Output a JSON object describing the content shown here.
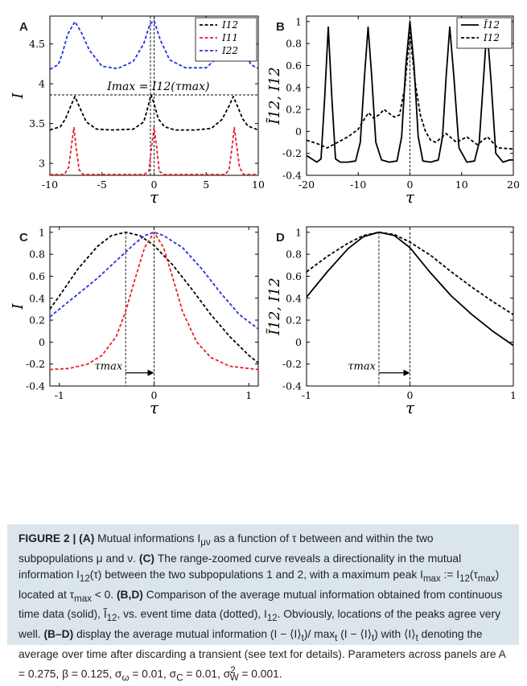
{
  "panels": [
    {
      "label": "A",
      "xlabel": "τ",
      "ylabel": "I",
      "xlim": [
        -10,
        10
      ],
      "ylim": [
        2.85,
        4.85
      ],
      "xticks": [
        "-10",
        "-5",
        "0",
        "5",
        "10"
      ],
      "xtickvals": [
        -10,
        -5,
        0,
        5,
        10
      ],
      "yticks": [
        "3",
        "3.5",
        "4",
        "4.5"
      ],
      "ytickvals": [
        3,
        3.5,
        4,
        4.5
      ],
      "legend": [
        "I12",
        "I11",
        "I22"
      ],
      "annotation": "Imax = I12(τmax)"
    },
    {
      "label": "B",
      "xlabel": "τ",
      "ylabel": "Ĩ12, I12",
      "xlim": [
        -20,
        20
      ],
      "ylim": [
        -0.4,
        1.05
      ],
      "xticks": [
        "-20",
        "-10",
        "0",
        "10",
        "20"
      ],
      "xtickvals": [
        -20,
        -10,
        0,
        10,
        20
      ],
      "yticks": [
        "-0.4",
        "-0.2",
        "0",
        "0.2",
        "0.4",
        "0.6",
        "0.8",
        "1"
      ],
      "ytickvals": [
        -0.4,
        -0.2,
        0,
        0.2,
        0.4,
        0.6,
        0.8,
        1
      ],
      "legend": [
        "Ĩ12",
        "I12"
      ]
    },
    {
      "label": "C",
      "xlabel": "τ",
      "ylabel": "I",
      "xlim": [
        -1.1,
        1.1
      ],
      "ylim": [
        -0.4,
        1.05
      ],
      "xticks": [
        "-1",
        "0",
        "1"
      ],
      "xtickvals": [
        -1,
        0,
        1
      ],
      "yticks": [
        "-0.4",
        "-0.2",
        "0",
        "0.2",
        "0.4",
        "0.6",
        "0.8",
        "1"
      ],
      "ytickvals": [
        -0.4,
        -0.2,
        0,
        0.2,
        0.4,
        0.6,
        0.8,
        1
      ],
      "annotation": "τmax"
    },
    {
      "label": "D",
      "xlabel": "τ",
      "ylabel": "Ĩ12, I12",
      "xlim": [
        -1,
        1
      ],
      "ylim": [
        -0.4,
        1.05
      ],
      "xticks": [
        "-1",
        "0",
        "1"
      ],
      "xtickvals": [
        -1,
        0,
        1
      ],
      "yticks": [
        "-0.4",
        "-0.2",
        "0",
        "0.2",
        "0.4",
        "0.6",
        "0.8",
        "1"
      ],
      "ytickvals": [
        -0.4,
        -0.2,
        0,
        0.2,
        0.4,
        0.6,
        0.8,
        1
      ],
      "annotation": "τmax"
    }
  ],
  "colors": {
    "black": "#000000",
    "red": "#e8202a",
    "blue": "#2233e0"
  },
  "chart_data": [
    {
      "type": "line",
      "panel": "A",
      "series": [
        {
          "name": "I12",
          "style": "dashed",
          "color": "#000000",
          "x": [
            -10,
            -9,
            -8.5,
            -8,
            -7.6,
            -7.2,
            -6.5,
            -5.5,
            -4,
            -2,
            -1,
            -0.6,
            -0.3,
            0,
            0.4,
            1,
            2,
            4,
            5.5,
            6.5,
            7.2,
            7.6,
            8,
            8.5,
            9,
            10
          ],
          "y": [
            3.42,
            3.46,
            3.56,
            3.72,
            3.84,
            3.72,
            3.52,
            3.43,
            3.42,
            3.43,
            3.52,
            3.7,
            3.86,
            3.75,
            3.56,
            3.46,
            3.42,
            3.42,
            3.44,
            3.55,
            3.72,
            3.84,
            3.72,
            3.56,
            3.47,
            3.42
          ]
        },
        {
          "name": "I11",
          "style": "dashed",
          "color": "#e8202a",
          "x": [
            -10,
            -8.6,
            -8.2,
            -7.9,
            -7.7,
            -7.5,
            -7.2,
            -6.8,
            -1,
            -0.5,
            -0.25,
            0,
            0.25,
            0.5,
            1,
            6.8,
            7.2,
            7.5,
            7.7,
            7.9,
            8.2,
            8.6,
            10
          ],
          "y": [
            2.86,
            2.86,
            2.95,
            3.25,
            3.45,
            3.22,
            2.92,
            2.86,
            2.86,
            2.9,
            3.2,
            3.45,
            3.2,
            2.9,
            2.86,
            2.86,
            2.92,
            3.22,
            3.45,
            3.25,
            2.95,
            2.86,
            2.86
          ]
        },
        {
          "name": "I22",
          "style": "dashed",
          "color": "#2233e0",
          "x": [
            -10,
            -9.2,
            -8.8,
            -8.3,
            -7.6,
            -7,
            -6.2,
            -5,
            -3.5,
            -2,
            -1,
            -0.4,
            0,
            0.6,
            1.5,
            3,
            5,
            6.3,
            7,
            7.6,
            8.2,
            8.8,
            9.3,
            10
          ],
          "y": [
            4.18,
            4.24,
            4.38,
            4.62,
            4.78,
            4.65,
            4.42,
            4.22,
            4.19,
            4.28,
            4.5,
            4.75,
            4.79,
            4.55,
            4.3,
            4.2,
            4.2,
            4.36,
            4.62,
            4.78,
            4.62,
            4.38,
            4.24,
            4.19
          ]
        }
      ]
    },
    {
      "type": "line",
      "panel": "B",
      "series": [
        {
          "name": "Ĩ12",
          "style": "solid",
          "color": "#000000",
          "x": [
            -20,
            -19,
            -18,
            -17.2,
            -16.5,
            -15.8,
            -15.1,
            -14.4,
            -13.5,
            -12,
            -10.5,
            -9.6,
            -8.8,
            -8.1,
            -7.4,
            -6.6,
            -5.5,
            -4,
            -2.5,
            -1.6,
            -0.8,
            0,
            0.8,
            1.6,
            2.5,
            4,
            5.5,
            6.3,
            7,
            7.7,
            8.5,
            9.5,
            11,
            12.5,
            13.4,
            14.2,
            14.9,
            15.7,
            16.6,
            18,
            19.3,
            20
          ],
          "y": [
            -0.22,
            -0.25,
            -0.28,
            -0.25,
            0.3,
            0.95,
            0.3,
            -0.25,
            -0.28,
            -0.28,
            -0.27,
            -0.1,
            0.5,
            0.95,
            0.5,
            -0.1,
            -0.26,
            -0.28,
            -0.27,
            -0.05,
            0.6,
            1.0,
            0.6,
            -0.05,
            -0.27,
            -0.28,
            -0.26,
            -0.05,
            0.5,
            0.95,
            0.5,
            -0.15,
            -0.28,
            -0.27,
            -0.1,
            0.45,
            0.95,
            0.45,
            -0.2,
            -0.28,
            -0.26,
            -0.26
          ]
        },
        {
          "name": "I12",
          "style": "dashed",
          "color": "#000000",
          "x": [
            -20,
            -18,
            -16,
            -14,
            -12,
            -10,
            -9,
            -8,
            -7,
            -6,
            -5,
            -4.5,
            -3,
            -2,
            -1,
            0,
            1,
            2,
            3,
            4,
            5,
            7,
            9,
            11,
            13,
            15,
            17,
            20
          ],
          "y": [
            -0.08,
            -0.11,
            -0.15,
            -0.1,
            -0.05,
            0.02,
            0.1,
            0.17,
            0.12,
            0.15,
            0.2,
            0.18,
            0.13,
            0.15,
            0.4,
            0.9,
            0.45,
            0.15,
            0.0,
            -0.08,
            -0.1,
            -0.02,
            -0.1,
            -0.05,
            -0.12,
            -0.05,
            -0.15,
            -0.16
          ]
        }
      ]
    },
    {
      "type": "line",
      "panel": "C",
      "series": [
        {
          "name": "",
          "style": "dashed",
          "color": "#000000",
          "x": [
            -1.1,
            -1,
            -0.8,
            -0.6,
            -0.45,
            -0.3,
            -0.15,
            0,
            0.2,
            0.4,
            0.6,
            0.8,
            1,
            1.1
          ],
          "y": [
            0.3,
            0.42,
            0.67,
            0.87,
            0.97,
            1.0,
            0.97,
            0.88,
            0.7,
            0.48,
            0.25,
            0.05,
            -0.12,
            -0.19
          ]
        },
        {
          "name": "",
          "style": "dashed",
          "color": "#2233e0",
          "x": [
            -1.1,
            -1,
            -0.8,
            -0.6,
            -0.4,
            -0.2,
            -0.1,
            0,
            0.1,
            0.3,
            0.5,
            0.7,
            0.9,
            1.1
          ],
          "y": [
            0.23,
            0.3,
            0.44,
            0.58,
            0.74,
            0.9,
            0.97,
            1.0,
            0.97,
            0.86,
            0.67,
            0.45,
            0.25,
            0.12
          ]
        },
        {
          "name": "",
          "style": "dashed",
          "color": "#e8202a",
          "x": [
            -1.1,
            -0.9,
            -0.7,
            -0.55,
            -0.4,
            -0.3,
            -0.2,
            -0.1,
            0,
            0.1,
            0.2,
            0.3,
            0.45,
            0.6,
            0.8,
            1,
            1.1
          ],
          "y": [
            -0.25,
            -0.24,
            -0.2,
            -0.12,
            0.05,
            0.28,
            0.58,
            0.86,
            1.0,
            0.86,
            0.58,
            0.28,
            0.0,
            -0.14,
            -0.22,
            -0.24,
            -0.25
          ]
        }
      ]
    },
    {
      "type": "line",
      "panel": "D",
      "series": [
        {
          "name": "",
          "style": "solid",
          "color": "#000000",
          "x": [
            -1,
            -0.8,
            -0.6,
            -0.45,
            -0.3,
            -0.15,
            0,
            0.2,
            0.4,
            0.6,
            0.8,
            1
          ],
          "y": [
            0.41,
            0.64,
            0.85,
            0.96,
            1.0,
            0.97,
            0.86,
            0.63,
            0.42,
            0.25,
            0.1,
            -0.03
          ]
        },
        {
          "name": "",
          "style": "dashed",
          "color": "#000000",
          "x": [
            -1,
            -0.8,
            -0.6,
            -0.45,
            -0.3,
            -0.15,
            0,
            0.2,
            0.4,
            0.6,
            0.8,
            1
          ],
          "y": [
            0.64,
            0.78,
            0.9,
            0.97,
            1.0,
            0.98,
            0.91,
            0.79,
            0.64,
            0.5,
            0.37,
            0.25
          ]
        }
      ]
    }
  ],
  "caption": {
    "fig": "FIGURE 2 |",
    "A": "(A)",
    "t1": " Mutual informations I",
    "t1sub": "μν",
    "t2": " as a function of τ between and within the two subpopulations μ and ν. ",
    "C": "(C)",
    "t3": " The range-zoomed curve reveals a directionality in the mutual information I",
    "t3sub": "12",
    "t4": "(τ) between the two subpopulations 1 and 2, with a maximum peak I",
    "t4sub": "max",
    "t5": " := I",
    "t5sub": "12",
    "t6": "(τ",
    "t6sub": "max",
    "t7": ") located at τ",
    "t7sub": "max",
    "t8": " < 0. ",
    "BD": "(B,D)",
    "t9": " Comparison of the average mutual information obtained from continuous time data (solid), Ĩ",
    "t9sub": "12",
    "t10": ", vs. event time data (dotted), I",
    "t10sub": "12",
    "t11": ". Obviously, locations of the peaks agree very well. ",
    "BtoD": "(B–D)",
    "t12": " display the average mutual information (I − ⟨I⟩",
    "t12sub": "t",
    "t13": ")/ max",
    "t13sub": "t",
    "t14": " (I − ⟨I⟩",
    "t14sub": "t",
    "t15": ") with ⟨I⟩",
    "t15sub": "t",
    "t16": " denoting the average over time after discarding a transient (see text for details). Parameters across panels are A = 0.275, β = 0.125, σ",
    "t16sub": "ω",
    "t17": " = 0.01, σ",
    "t17sub": "C",
    "t18": " = 0.01, σ",
    "t18sub": "W",
    "t18sup": "2",
    "t19": " = 0.001."
  }
}
